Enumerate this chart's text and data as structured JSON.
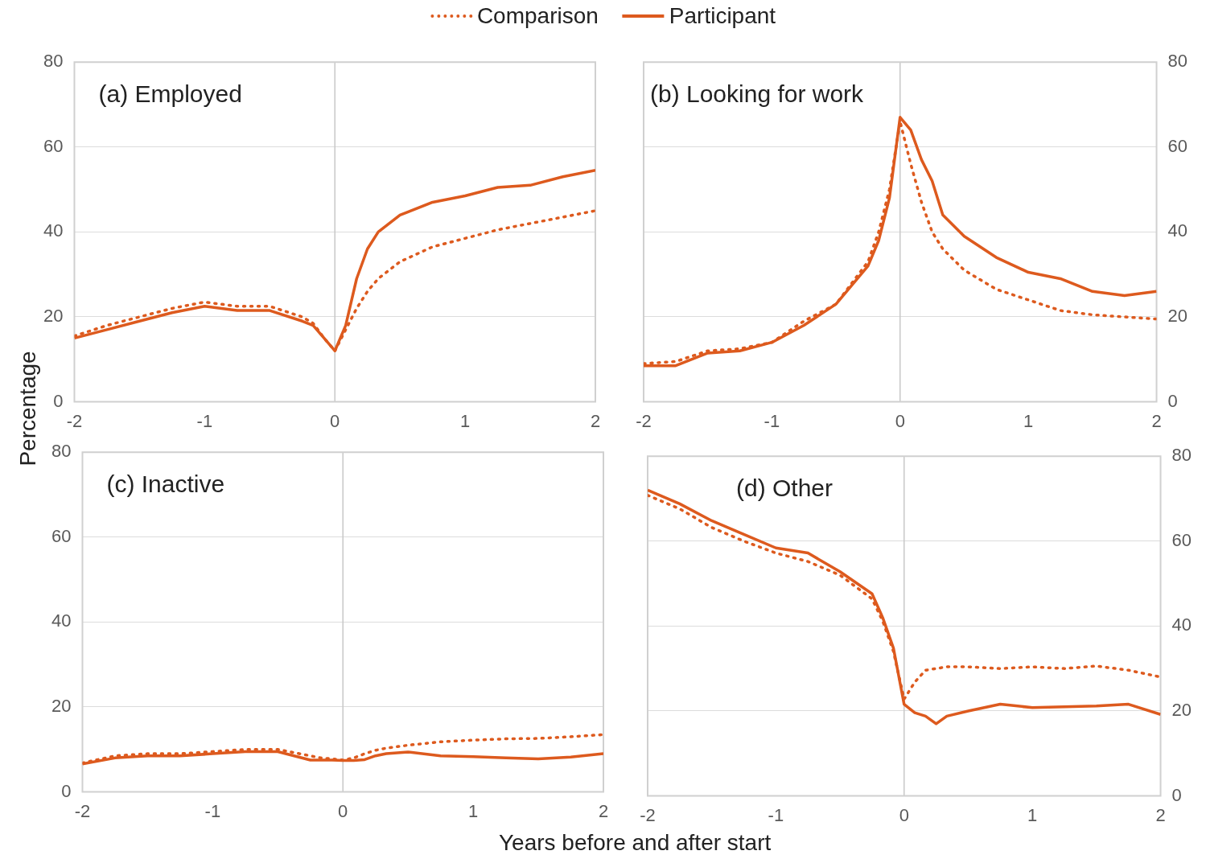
{
  "chart_data": [
    {
      "type": "line",
      "title": "(a) Employed",
      "ylabel": "Percentage",
      "legend": "top",
      "grid": "y",
      "marker": "none",
      "x": [
        -2,
        -1.75,
        -1.5,
        -1.25,
        -1,
        -0.75,
        -0.5,
        -0.25,
        -0.167,
        -0.083,
        0,
        0.083,
        0.167,
        0.25,
        0.333,
        0.5,
        0.75,
        1,
        1.25,
        1.5,
        1.75,
        2
      ],
      "xlim": [
        -2,
        2
      ],
      "xticks": [
        -2,
        -1,
        0,
        1,
        2
      ],
      "ylim": [
        0,
        80
      ],
      "yticks": [
        0,
        20,
        40,
        60,
        80
      ],
      "ref_lines": [
        {
          "axis": "x",
          "value": 0,
          "color": "#c8c8c8"
        }
      ],
      "series": [
        {
          "name": "Comparison",
          "color": "#dd5a1e",
          "line_style": "dotted",
          "values": [
            15.5,
            18,
            20,
            22,
            23.5,
            22.5,
            22.5,
            20,
            18.5,
            15,
            12,
            17,
            22,
            26,
            29,
            33,
            36.5,
            38.5,
            40.5,
            42,
            43.5,
            45
          ]
        },
        {
          "name": "Participant",
          "color": "#dd5a1e",
          "line_style": "solid",
          "values": [
            15,
            17,
            19,
            21,
            22.5,
            21.5,
            21.5,
            19,
            18,
            15,
            12,
            18,
            29,
            36,
            40,
            44,
            47,
            48.5,
            50.5,
            51,
            53,
            54.5
          ]
        }
      ]
    },
    {
      "type": "line",
      "title": "(b) Looking for work",
      "grid": "y",
      "marker": "none",
      "x": [
        -2,
        -1.75,
        -1.5,
        -1.25,
        -1,
        -0.75,
        -0.5,
        -0.25,
        -0.167,
        -0.083,
        0,
        0.083,
        0.167,
        0.25,
        0.333,
        0.5,
        0.75,
        1,
        1.25,
        1.5,
        1.75,
        2
      ],
      "xlim": [
        -2,
        2
      ],
      "xticks": [
        -2,
        -1,
        0,
        1,
        2
      ],
      "y2lim": [
        0,
        80
      ],
      "y2ticks": [
        0,
        20,
        40,
        60,
        80
      ],
      "ref_lines": [
        {
          "axis": "x",
          "value": 0,
          "color": "#c8c8c8"
        }
      ],
      "series": [
        {
          "color": "#dd5a1e",
          "line_style": "dotted",
          "axis": "y2",
          "values": [
            9,
            9.5,
            12,
            12.5,
            14,
            19,
            23,
            33,
            40,
            50,
            66,
            56,
            47,
            40,
            36,
            31,
            26.5,
            24,
            21.5,
            20.5,
            20,
            19.5
          ]
        },
        {
          "color": "#dd5a1e",
          "line_style": "solid",
          "axis": "y2",
          "values": [
            8.5,
            8.5,
            11.5,
            12,
            14,
            18,
            23,
            32,
            38,
            48,
            67,
            64,
            57,
            52,
            44,
            39,
            34,
            30.5,
            29,
            26,
            25,
            26
          ]
        }
      ]
    },
    {
      "type": "line",
      "title": "(c) Inactive",
      "xlabel": "Years before and after start",
      "grid": "y",
      "marker": "none",
      "x": [
        -2,
        -1.75,
        -1.5,
        -1.25,
        -1,
        -0.75,
        -0.5,
        -0.25,
        -0.167,
        -0.083,
        0,
        0.083,
        0.167,
        0.25,
        0.333,
        0.5,
        0.75,
        1,
        1.25,
        1.5,
        1.75,
        2
      ],
      "xlim": [
        -2,
        2
      ],
      "xticks": [
        -2,
        -1,
        0,
        1,
        2
      ],
      "ylim": [
        0,
        80
      ],
      "yticks": [
        0,
        20,
        40,
        60,
        80
      ],
      "ref_lines": [
        {
          "axis": "x",
          "value": 0,
          "color": "#c8c8c8"
        }
      ],
      "series": [
        {
          "color": "#dd5a1e",
          "line_style": "dotted",
          "values": [
            6.8,
            8.5,
            9,
            9,
            9.5,
            10,
            10,
            8.5,
            8,
            7.8,
            7.5,
            8,
            9,
            9.8,
            10.3,
            11,
            11.8,
            12.2,
            12.5,
            12.6,
            13,
            13.5
          ]
        },
        {
          "color": "#dd5a1e",
          "line_style": "solid",
          "values": [
            6.6,
            8,
            8.5,
            8.5,
            9,
            9.5,
            9.5,
            7.5,
            7.5,
            7.5,
            7.4,
            7.4,
            7.6,
            8.5,
            9,
            9.4,
            8.5,
            8.3,
            8,
            7.8,
            8.2,
            9
          ]
        }
      ]
    },
    {
      "type": "line",
      "title": "(d) Other",
      "grid": "y",
      "marker": "none",
      "x": [
        -2,
        -1.75,
        -1.5,
        -1.25,
        -1,
        -0.75,
        -0.5,
        -0.25,
        -0.167,
        -0.083,
        0,
        0.083,
        0.167,
        0.25,
        0.333,
        0.5,
        0.75,
        1,
        1.25,
        1.5,
        1.75,
        2
      ],
      "xlim": [
        -2,
        2
      ],
      "xticks": [
        -2,
        -1,
        0,
        1,
        2
      ],
      "y2lim": [
        0,
        80
      ],
      "y2ticks": [
        0,
        20,
        40,
        60,
        80
      ],
      "ref_lines": [
        {
          "axis": "x",
          "value": 0,
          "color": "#c8c8c8"
        }
      ],
      "series": [
        {
          "color": "#dd5a1e",
          "line_style": "dotted",
          "axis": "y2",
          "values": [
            70.8,
            67.6,
            63.2,
            60,
            57.2,
            55.2,
            52,
            46.4,
            41.2,
            34,
            22.8,
            26.8,
            29.6,
            30,
            30.4,
            30.4,
            30,
            30.4,
            30,
            30.6,
            29.6,
            28
          ]
        },
        {
          "color": "#dd5a1e",
          "line_style": "solid",
          "axis": "y2",
          "values": [
            72,
            68.8,
            64.8,
            61.6,
            58.4,
            57.2,
            52.8,
            47.6,
            42,
            34.8,
            21.6,
            19.6,
            18.8,
            17,
            18.8,
            20,
            21.6,
            20.8,
            21,
            21.2,
            21.6,
            19.2
          ]
        }
      ]
    }
  ]
}
